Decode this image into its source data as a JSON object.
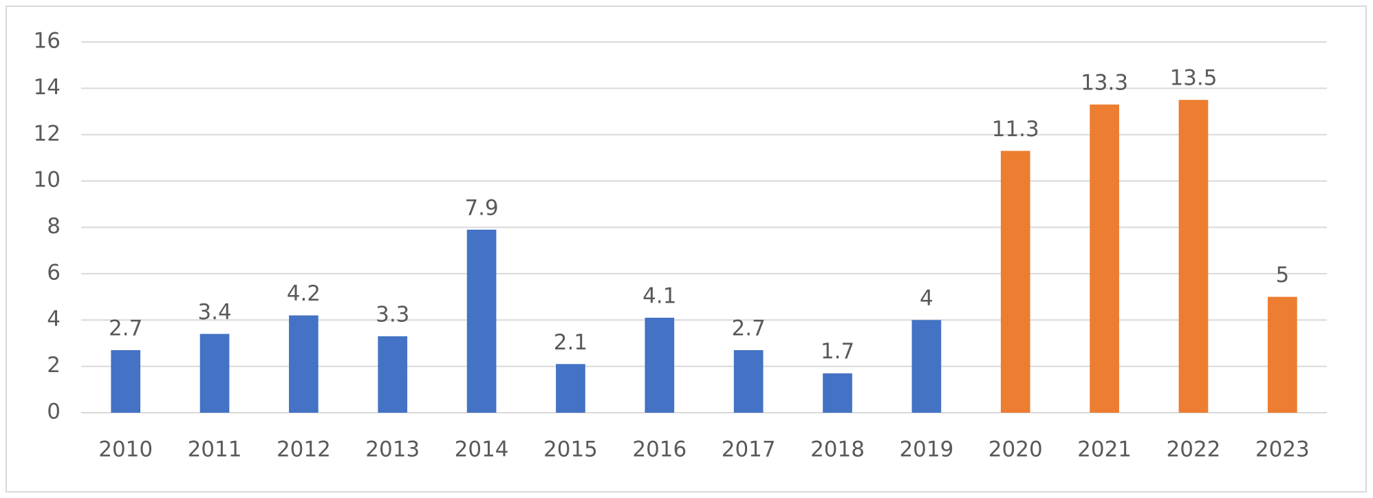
{
  "chart_data": {
    "type": "bar",
    "categories": [
      "2010",
      "2011",
      "2012",
      "2013",
      "2014",
      "2015",
      "2016",
      "2017",
      "2018",
      "2019",
      "2020",
      "2021",
      "2022",
      "2023"
    ],
    "values": [
      2.7,
      3.4,
      4.2,
      3.3,
      7.9,
      2.1,
      4.1,
      2.7,
      1.7,
      4,
      11.3,
      13.3,
      13.5,
      5
    ],
    "colors": [
      "#4472c4",
      "#4472c4",
      "#4472c4",
      "#4472c4",
      "#4472c4",
      "#4472c4",
      "#4472c4",
      "#4472c4",
      "#4472c4",
      "#4472c4",
      "#ed7d31",
      "#ed7d31",
      "#ed7d31",
      "#ed7d31"
    ],
    "ylim": [
      0,
      16
    ],
    "yticks": [
      0,
      2,
      4,
      6,
      8,
      10,
      12,
      14,
      16
    ],
    "grid": true,
    "data_labels": true
  }
}
